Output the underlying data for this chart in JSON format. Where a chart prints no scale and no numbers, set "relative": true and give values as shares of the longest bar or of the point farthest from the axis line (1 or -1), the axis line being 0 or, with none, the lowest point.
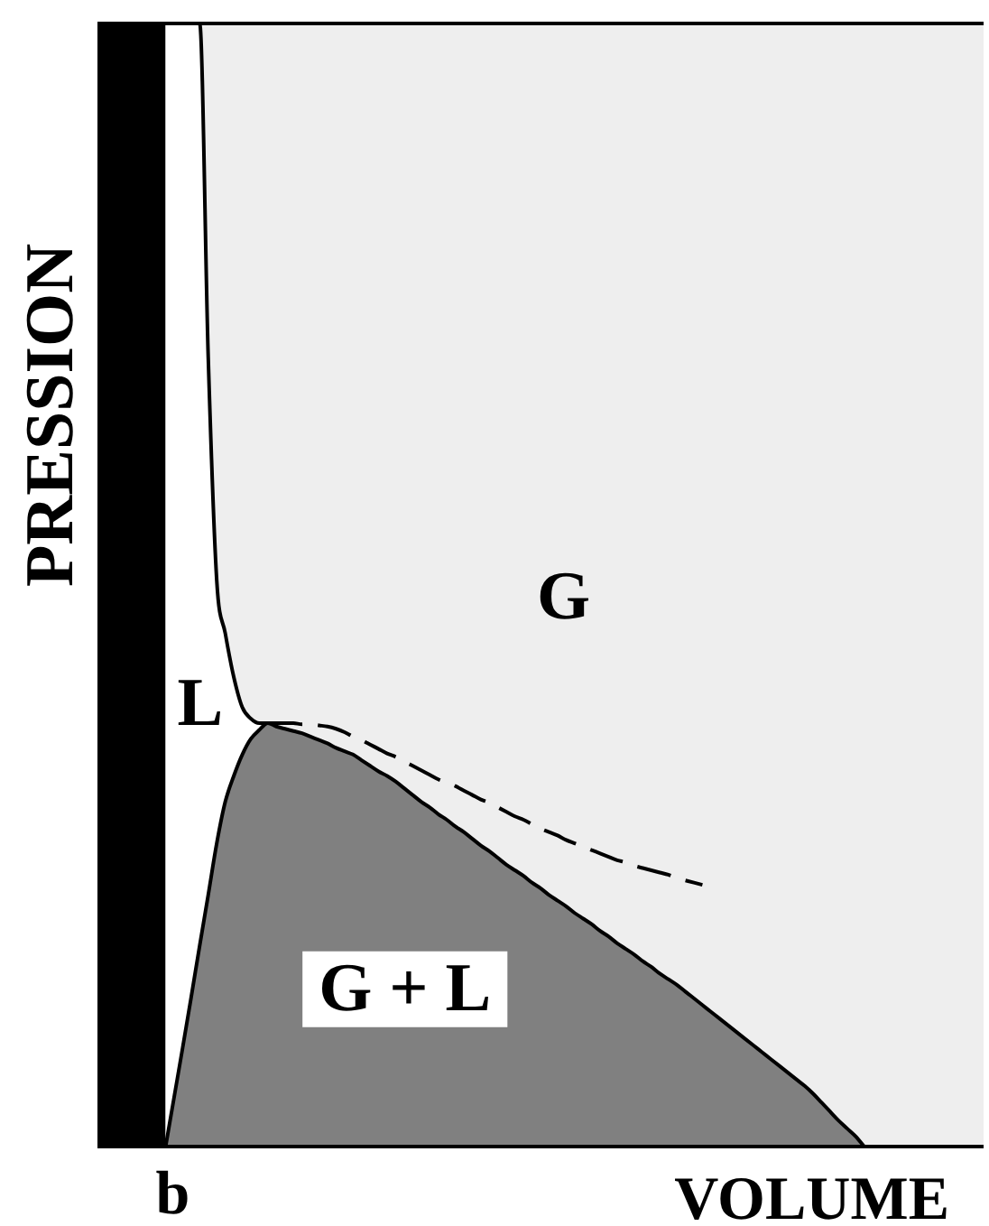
{
  "chart_data": {
    "type": "area",
    "relative": true,
    "xlabel": "VOLUME",
    "ylabel": "PRESSION",
    "categories": [
      null,
      null,
      null,
      null,
      null,
      null,
      null,
      null,
      null,
      null,
      null,
      null,
      null,
      null,
      null,
      null,
      null,
      null,
      null,
      null,
      null,
      null,
      null,
      null,
      null,
      null,
      null,
      null,
      null,
      null,
      null,
      null,
      null,
      null,
      null,
      null,
      null,
      null,
      null,
      null,
      null,
      null,
      null,
      null,
      null,
      null,
      null,
      null,
      null,
      null,
      null,
      null,
      null,
      null,
      null,
      null,
      null,
      null,
      null,
      null,
      null,
      null,
      null,
      null,
      null,
      null,
      null,
      null,
      null,
      null,
      null,
      null,
      null,
      null,
      null,
      null,
      null,
      null,
      null,
      null,
      null,
      null,
      null,
      null,
      null,
      null,
      null,
      null,
      null,
      null,
      null,
      null,
      null,
      null,
      null,
      null,
      null,
      null,
      null,
      null,
      null,
      null,
      null,
      null,
      null
    ],
    "series": [
      {
        "type": "area",
        "color": "#000000",
        "values": [
          1,
          1,
          1,
          1,
          1,
          1,
          1,
          1,
          1,
          null,
          null,
          null,
          null,
          null,
          null,
          null,
          null,
          null,
          null,
          null,
          null,
          null,
          null,
          null,
          null,
          null,
          null,
          null,
          null,
          null,
          null,
          null,
          null,
          null,
          null,
          null,
          null,
          null,
          null,
          null,
          null,
          null,
          null,
          null,
          null,
          null,
          null,
          null,
          null,
          null,
          null,
          null,
          null,
          null,
          null,
          null,
          null,
          null,
          null,
          null,
          null,
          null,
          null,
          null,
          null,
          null,
          null,
          null,
          null,
          null,
          null,
          null,
          null,
          null,
          null,
          null,
          null,
          null,
          null,
          null,
          null,
          null,
          null,
          null,
          null,
          null,
          null,
          null,
          null,
          null,
          null,
          null,
          null,
          null,
          null,
          null,
          null,
          null,
          null,
          null,
          null,
          null,
          null,
          null,
          null
        ]
      },
      {
        "type": "area",
        "color": "#ffffff",
        "values": [
          null,
          null,
          null,
          null,
          null,
          null,
          null,
          null,
          1,
          1,
          1,
          1,
          1,
          0.703,
          0.504,
          0.457,
          0.418,
          0.391,
          0.381,
          0.377,
          0.377,
          null,
          null,
          null,
          null,
          null,
          null,
          null,
          null,
          null,
          null,
          null,
          null,
          null,
          null,
          null,
          null,
          null,
          null,
          null,
          null,
          null,
          null,
          null,
          null,
          null,
          null,
          null,
          null,
          null,
          null,
          null,
          null,
          null,
          null,
          null,
          null,
          null,
          null,
          null,
          null,
          null,
          null,
          null,
          null,
          null,
          null,
          null,
          null,
          null,
          null,
          null,
          null,
          null,
          null,
          null,
          null,
          null,
          null,
          null,
          null,
          null,
          null,
          null,
          null,
          null,
          null,
          null,
          null,
          null,
          null,
          null,
          null,
          null,
          null,
          null,
          null,
          null,
          null,
          null,
          null,
          null,
          null,
          null,
          null
        ]
      },
      {
        "type": "area",
        "color": "#808080",
        "values": [
          null,
          null,
          null,
          null,
          null,
          null,
          null,
          null,
          0,
          0.044,
          0.088,
          0.133,
          0.179,
          0.224,
          0.27,
          0.307,
          0.33,
          0.349,
          0.363,
          0.371,
          0.377,
          0.374,
          0.372,
          0.37,
          0.368,
          0.365,
          0.362,
          0.359,
          0.355,
          0.352,
          0.349,
          0.344,
          0.339,
          0.334,
          0.33,
          0.325,
          0.319,
          0.313,
          0.307,
          0.302,
          0.296,
          0.291,
          0.285,
          0.28,
          0.274,
          0.268,
          0.263,
          0.257,
          0.251,
          0.246,
          0.241,
          0.235,
          0.23,
          0.224,
          0.219,
          0.214,
          0.208,
          0.203,
          0.198,
          0.192,
          0.187,
          0.181,
          0.176,
          0.171,
          0.165,
          0.16,
          0.154,
          0.149,
          0.144,
          0.138,
          0.132,
          0.126,
          0.12,
          0.114,
          0.108,
          0.102,
          0.096,
          0.09,
          0.084,
          0.078,
          0.072,
          0.066,
          0.06,
          0.054,
          0.047,
          0.039,
          0.031,
          0.023,
          0.016,
          0.009,
          0,
          null,
          null,
          null,
          null,
          null,
          null,
          null,
          null,
          null,
          null,
          null,
          null,
          null,
          null
        ]
      },
      {
        "type": "line",
        "color": "#000000",
        "line_style": "dashed",
        "values": [
          null,
          null,
          null,
          null,
          null,
          null,
          null,
          null,
          null,
          null,
          null,
          null,
          null,
          null,
          null,
          null,
          null,
          null,
          null,
          null,
          0.377,
          0.377,
          0.377,
          0.377,
          0.376,
          0.376,
          0.375,
          0.374,
          0.372,
          0.369,
          0.365,
          0.362,
          0.358,
          0.354,
          0.35,
          0.347,
          0.343,
          0.339,
          0.335,
          0.331,
          0.327,
          0.324,
          0.321,
          0.317,
          0.313,
          0.309,
          0.306,
          0.302,
          0.298,
          0.294,
          0.291,
          0.287,
          0.283,
          0.28,
          0.277,
          0.273,
          0.27,
          0.267,
          0.264,
          0.261,
          0.258,
          0.255,
          0.253,
          0.25,
          0.248,
          0.246,
          0.244,
          0.242,
          0.239,
          0.237,
          0.235,
          0.233,
          null,
          null,
          null,
          null,
          null,
          null,
          null,
          null,
          null,
          null,
          null,
          null,
          null,
          null,
          null,
          null,
          null,
          null,
          null,
          null,
          null,
          null,
          null,
          null,
          null,
          null,
          null,
          null,
          null,
          null,
          null,
          null,
          null
        ]
      }
    ],
    "annotations": [
      "G",
      "L",
      "G + L",
      "b"
    ]
  }
}
